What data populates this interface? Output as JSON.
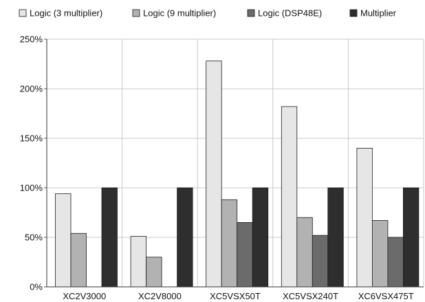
{
  "chart_data": {
    "type": "bar",
    "title": "",
    "xlabel": "",
    "ylabel": "",
    "categories": [
      "XC2V3000",
      "XC2V8000",
      "XC5VSX50T",
      "XC5VSX240T",
      "XC6VSX475T"
    ],
    "series": [
      {
        "name": "Logic (3 multiplier)",
        "color": "#e6e6e6",
        "values": [
          94,
          51,
          228,
          182,
          140
        ]
      },
      {
        "name": "Logic (9 multiplier)",
        "color": "#b2b2b2",
        "values": [
          54,
          30,
          88,
          70,
          67
        ]
      },
      {
        "name": "Logic (DSP48E)",
        "color": "#6b6b6b",
        "values": [
          null,
          null,
          65,
          52,
          50
        ]
      },
      {
        "name": "Multiplier",
        "color": "#2e2e2e",
        "values": [
          100,
          100,
          100,
          100,
          100
        ]
      }
    ],
    "yticks": [
      "0%",
      "50%",
      "100%",
      "150%",
      "200%",
      "250%"
    ],
    "ylim": [
      0,
      250
    ],
    "grid": true,
    "legend_position": "top"
  }
}
